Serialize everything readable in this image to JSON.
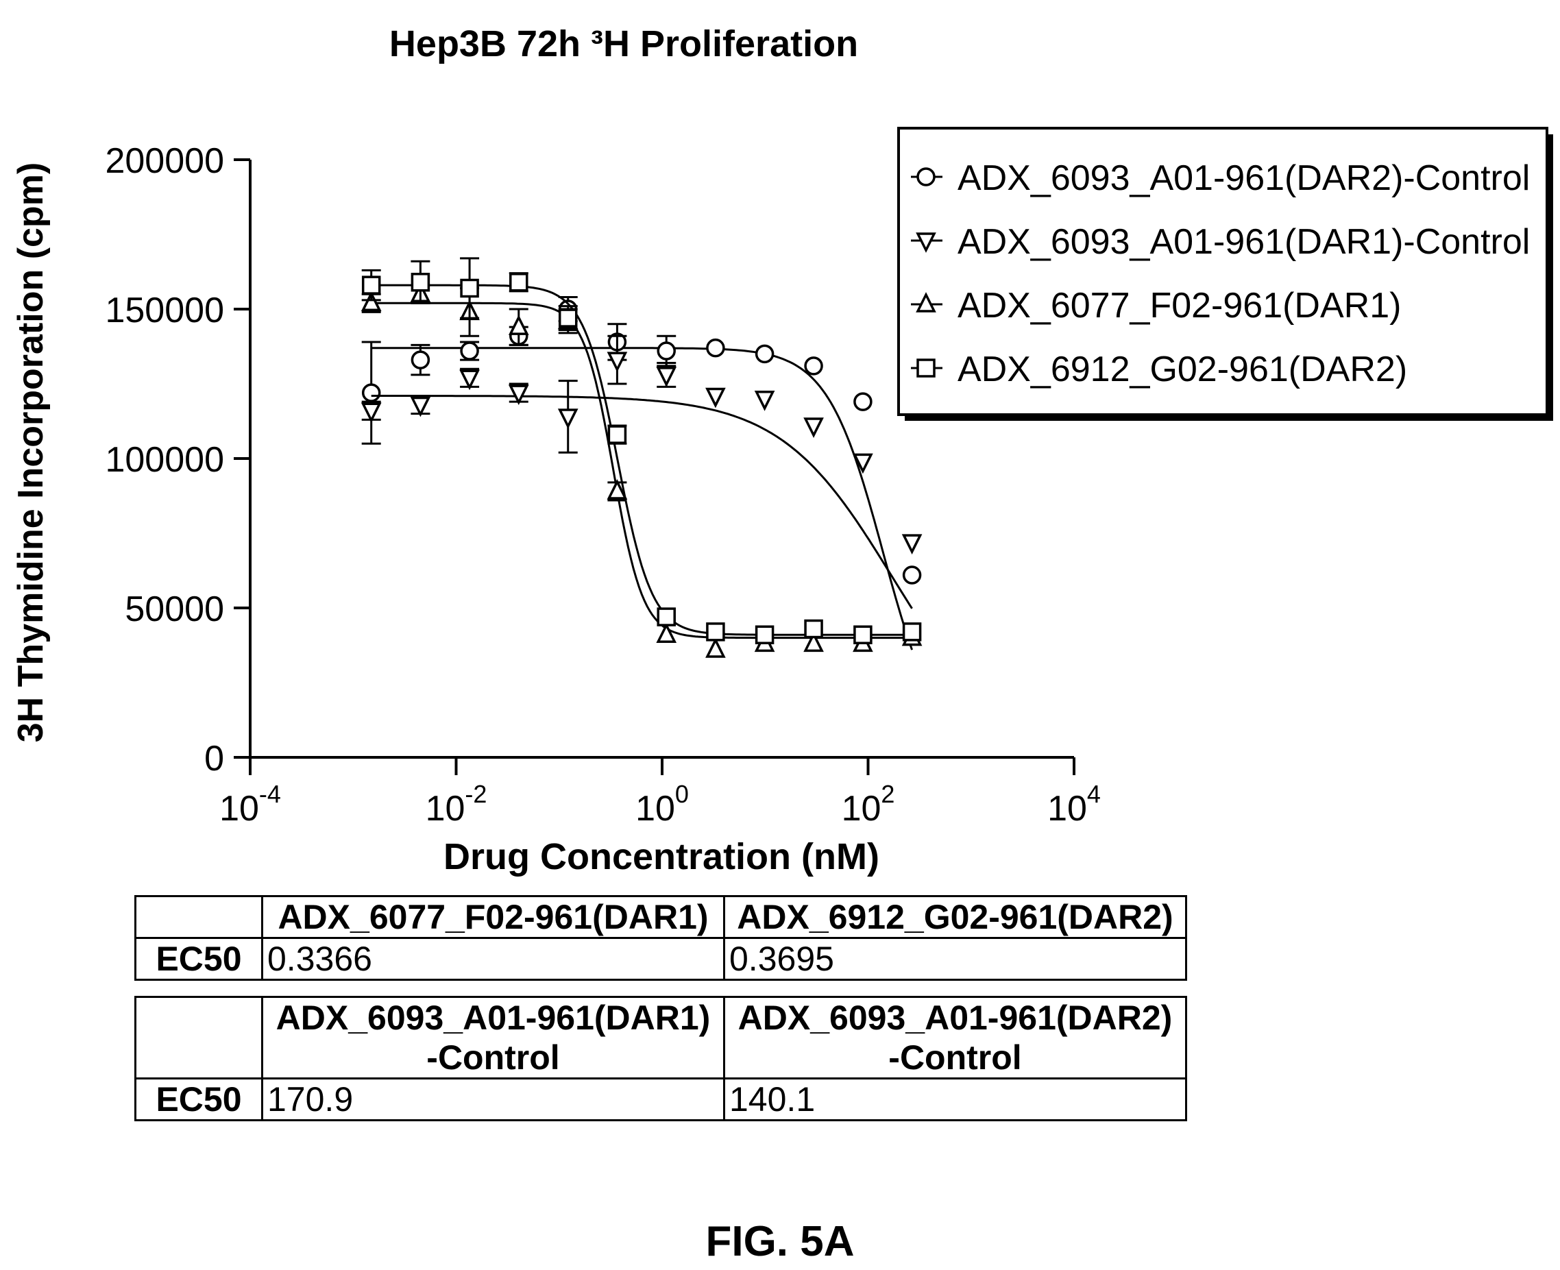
{
  "chart_data": {
    "type": "scatter",
    "title": "Hep3B 72h ³H Proliferation",
    "xlabel": "Drug Concentration (nM)",
    "ylabel": "3H Thymidine Incorporation (cpm)",
    "xscale": "log",
    "xlim": [
      0.0001,
      10000
    ],
    "ylim": [
      0,
      200000
    ],
    "x_ticks": [
      {
        "base": "10",
        "exp": "-4",
        "value": 0.0001
      },
      {
        "base": "10",
        "exp": "-2",
        "value": 0.01
      },
      {
        "base": "10",
        "exp": "0",
        "value": 1
      },
      {
        "base": "10",
        "exp": "2",
        "value": 100
      },
      {
        "base": "10",
        "exp": "4",
        "value": 10000
      }
    ],
    "y_ticks": [
      {
        "label": "0",
        "value": 0
      },
      {
        "label": "50000",
        "value": 50000
      },
      {
        "label": "100000",
        "value": 100000
      },
      {
        "label": "150000",
        "value": 150000
      },
      {
        "label": "200000",
        "value": 200000
      }
    ],
    "legend_position": "top-right",
    "grid": false,
    "series": [
      {
        "name": "ADX_6093_A01-961(DAR2)-Control",
        "marker": "circle",
        "x": [
          0.0015,
          0.0045,
          0.0135,
          0.0405,
          0.122,
          0.366,
          1.1,
          3.3,
          9.9,
          29.6,
          89,
          267
        ],
        "y": [
          122000,
          133000,
          136000,
          141000,
          150000,
          139000,
          136000,
          137000,
          135000,
          131000,
          119000,
          61000
        ],
        "fit": {
          "top": 137000,
          "bottom": 0,
          "ec50": 140.1,
          "hill": 1.6
        },
        "error": [
          17000,
          5000,
          3000,
          3000,
          4000,
          6000,
          5000,
          2000,
          2000,
          2000,
          2000,
          2000
        ]
      },
      {
        "name": "ADX_6093_A01-961(DAR1)-Control",
        "marker": "triangle-down",
        "x": [
          0.0015,
          0.0045,
          0.0135,
          0.0405,
          0.122,
          0.366,
          1.1,
          3.3,
          9.9,
          29.6,
          89,
          267
        ],
        "y": [
          116000,
          118000,
          127000,
          122000,
          114000,
          133000,
          128000,
          121000,
          120000,
          111000,
          99000,
          72000
        ],
        "fit": {
          "top": 121000,
          "bottom": 0,
          "ec50": 170.9,
          "hill": 0.8
        },
        "error": [
          3000,
          3000,
          3000,
          3000,
          12000,
          8000,
          4000,
          2000,
          2000,
          2000,
          2000,
          2000
        ]
      },
      {
        "name": "ADX_6077_F02-961(DAR1)",
        "marker": "triangle-up",
        "x": [
          0.0015,
          0.0045,
          0.0135,
          0.0405,
          0.122,
          0.366,
          1.1,
          3.3,
          9.9,
          29.6,
          89,
          267
        ],
        "y": [
          152000,
          155000,
          149000,
          144000,
          146000,
          89000,
          41000,
          36000,
          38000,
          38000,
          38000,
          40000
        ],
        "fit": {
          "top": 152000,
          "bottom": 40000,
          "ec50": 0.3366,
          "hill": 3.0
        },
        "error": [
          3000,
          3000,
          8000,
          6000,
          4000,
          3000,
          2000,
          2000,
          2000,
          2000,
          2000,
          2000
        ]
      },
      {
        "name": "ADX_6912_G02-961(DAR2)",
        "marker": "square",
        "x": [
          0.0015,
          0.0045,
          0.0135,
          0.0405,
          0.122,
          0.366,
          1.1,
          3.3,
          9.9,
          29.6,
          89,
          267
        ],
        "y": [
          158000,
          159000,
          157000,
          159000,
          147000,
          108000,
          47000,
          42000,
          41000,
          43000,
          41000,
          42000
        ],
        "fit": {
          "top": 158000,
          "bottom": 41000,
          "ec50": 0.3695,
          "hill": 2.6
        },
        "error": [
          5000,
          7000,
          10000,
          3000,
          4000,
          3000,
          2000,
          2000,
          2000,
          2000,
          2000,
          2000
        ]
      }
    ]
  },
  "tables": [
    {
      "row_label": "EC50",
      "headers": [
        "ADX_6077_F02-961(DAR1)",
        "ADX_6912_G02-961(DAR2)"
      ],
      "values": [
        "0.3366",
        "0.3695"
      ]
    },
    {
      "row_label": "EC50",
      "headers": [
        "ADX_6093_A01-961(DAR1)\n-Control",
        "ADX_6093_A01-961(DAR2)\n-Control"
      ],
      "header_lines": [
        [
          "ADX_6093_A01-961(DAR1)",
          "-Control"
        ],
        [
          "ADX_6093_A01-961(DAR2)",
          "-Control"
        ]
      ],
      "values": [
        "170.9",
        "140.1"
      ]
    }
  ],
  "figure_label": "FIG. 5A"
}
